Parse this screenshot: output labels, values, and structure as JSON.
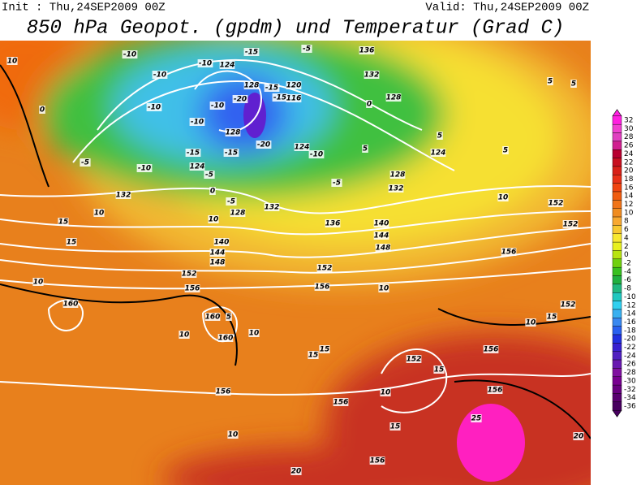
{
  "header": {
    "init": "Init : Thu,24SEP2009 00Z",
    "valid": "Valid: Thu,24SEP2009 00Z",
    "title": "850 hPa Geopot. (gpdm) und Temperatur (Grad C)"
  },
  "colorbar": {
    "ticks": [
      32,
      30,
      28,
      26,
      24,
      22,
      20,
      18,
      16,
      14,
      12,
      10,
      8,
      6,
      4,
      2,
      0,
      -2,
      -4,
      -6,
      -8,
      -10,
      -12,
      -14,
      -16,
      -18,
      -20,
      -22,
      -24,
      -26,
      -28,
      -30,
      -32,
      -34,
      -36
    ],
    "colors": [
      "#ff20e0",
      "#f040d0",
      "#e040c0",
      "#d02090",
      "#b80030",
      "#c81020",
      "#d82018",
      "#e83018",
      "#f04410",
      "#f05c10",
      "#f07418",
      "#f08c20",
      "#f8a830",
      "#f8c830",
      "#f8e830",
      "#e8f020",
      "#b8e410",
      "#70d010",
      "#38c020",
      "#20b040",
      "#20b880",
      "#20c8c0",
      "#30d0f0",
      "#38b0f0",
      "#3888f0",
      "#2860f0",
      "#2030e0",
      "#3820d0",
      "#5020c0",
      "#6818b0",
      "#8010a0",
      "#780090",
      "#680080",
      "#580070",
      "#480060"
    ]
  },
  "map_labels": [
    "10",
    "-10",
    "-10",
    "-15",
    "-5",
    "136",
    "132",
    "128",
    "-10",
    "124",
    "128",
    "-15",
    "120",
    "-15",
    "116",
    "-20",
    "-10",
    "-10",
    "-10",
    "0",
    "-5",
    "-10",
    "124",
    "-5",
    "128",
    "-15",
    "-20",
    "124",
    "-10",
    "-5",
    "128",
    "132",
    "-15",
    "132",
    "0",
    "-5",
    "128",
    "132",
    "10",
    "10",
    "136",
    "140",
    "144",
    "148",
    "140",
    "144",
    "148",
    "152",
    "156",
    "152",
    "156",
    "10",
    "15",
    "15",
    "10",
    "160",
    "160",
    "5",
    "160",
    "10",
    "10",
    "15",
    "15",
    "152",
    "15",
    "156",
    "156",
    "156",
    "10",
    "15",
    "10",
    "156",
    "25",
    "156",
    "20",
    "20",
    "10",
    "152",
    "152",
    "156",
    "152",
    "10",
    "15",
    "124",
    "5",
    "5",
    "5",
    "5",
    "0",
    "5"
  ]
}
